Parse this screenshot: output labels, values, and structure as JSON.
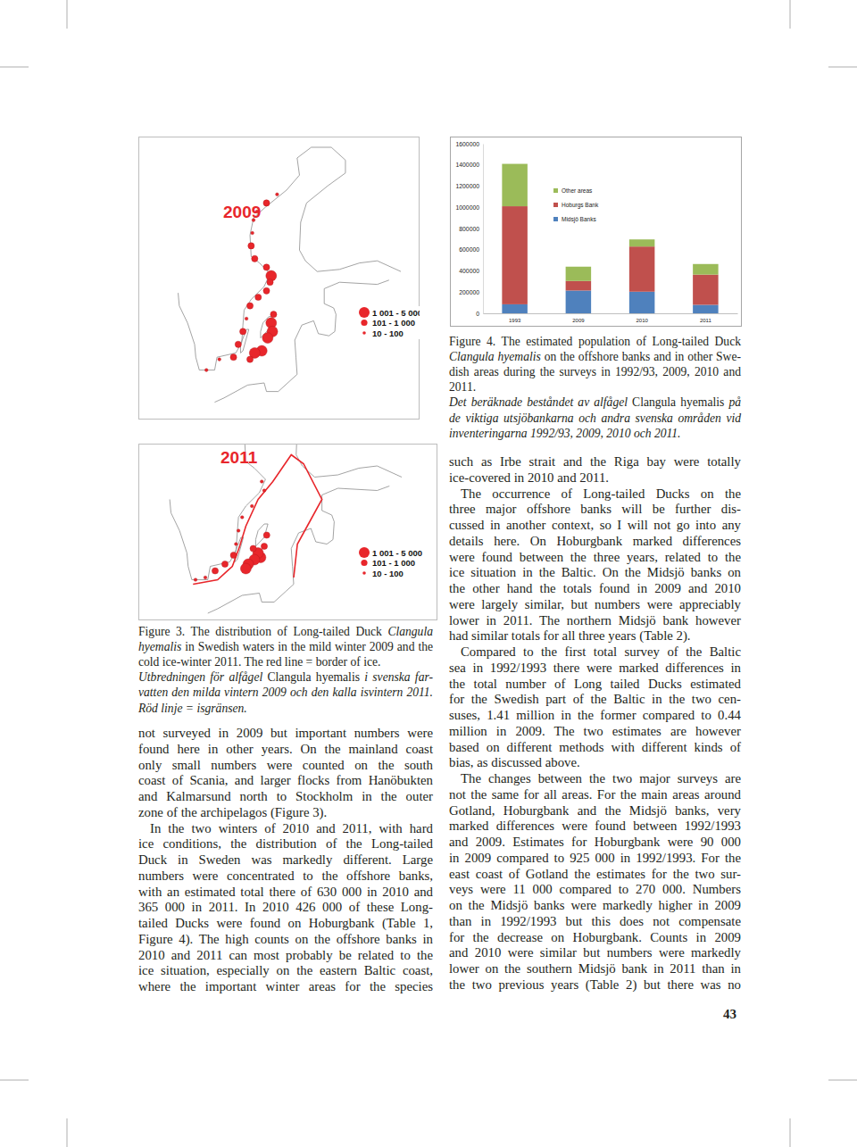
{
  "chart_data": {
    "type": "bar",
    "stacked": true,
    "legend": "top",
    "categories": [
      "1993",
      "2009",
      "2010",
      "2011"
    ],
    "series": [
      {
        "name": "Midsjö Banks",
        "color": "#4f81bd",
        "values": [
          85000,
          215000,
          204000,
          80000
        ]
      },
      {
        "name": "Hoburgs Bank",
        "color": "#c0504d",
        "values": [
          925000,
          90000,
          426000,
          285000
        ]
      },
      {
        "name": "Other areas",
        "color": "#9bbb59",
        "values": [
          400000,
          135000,
          67000,
          100000
        ]
      }
    ],
    "ylim": [
      0,
      1600000
    ],
    "yticks": [
      0,
      200000,
      400000,
      600000,
      800000,
      1000000,
      1200000,
      1400000,
      1600000
    ]
  },
  "maps": [
    {
      "label": "2009",
      "dots": [
        [
          17.5,
          62.4,
          2
        ],
        [
          17.8,
          62.8,
          2
        ],
        [
          18.6,
          63.2,
          1
        ],
        [
          19.5,
          63.6,
          2
        ],
        [
          17.4,
          61.8,
          2
        ],
        [
          17.3,
          61.2,
          1
        ],
        [
          17.6,
          60.6,
          1
        ],
        [
          18.6,
          60.2,
          1
        ],
        [
          19.0,
          59.8,
          0
        ],
        [
          18.9,
          59.5,
          1
        ],
        [
          18.6,
          59.1,
          1
        ],
        [
          17.9,
          58.8,
          1
        ],
        [
          17.2,
          58.4,
          1
        ],
        [
          16.9,
          57.8,
          2
        ],
        [
          16.6,
          57.2,
          1
        ],
        [
          16.2,
          56.6,
          1
        ],
        [
          15.8,
          56.0,
          1
        ],
        [
          14.6,
          55.9,
          2
        ],
        [
          13.5,
          55.4,
          2
        ],
        [
          19.0,
          57.6,
          0
        ],
        [
          19.1,
          57.2,
          0
        ],
        [
          18.7,
          56.9,
          0
        ],
        [
          18.2,
          56.3,
          0
        ],
        [
          17.6,
          56.2,
          0
        ],
        [
          17.2,
          55.9,
          1
        ],
        [
          19.2,
          58.0,
          1
        ]
      ]
    },
    {
      "label": "2011",
      "dots": [
        [
          13.2,
          55.4,
          2
        ],
        [
          14.0,
          55.5,
          2
        ],
        [
          14.8,
          55.8,
          1
        ],
        [
          15.6,
          56.1,
          1
        ],
        [
          16.3,
          56.5,
          1
        ],
        [
          16.5,
          57.0,
          2
        ],
        [
          16.7,
          57.6,
          2
        ],
        [
          17.0,
          58.2,
          2
        ],
        [
          17.8,
          58.7,
          2
        ],
        [
          18.8,
          59.4,
          2
        ],
        [
          18.6,
          59.8,
          2
        ],
        [
          18.5,
          56.4,
          0
        ],
        [
          18.3,
          56.6,
          0
        ],
        [
          18.0,
          56.3,
          0
        ],
        [
          17.5,
          56.1,
          0
        ],
        [
          17.3,
          55.9,
          0
        ],
        [
          18.8,
          56.9,
          1
        ],
        [
          19.0,
          57.4,
          1
        ],
        [
          17.9,
          56.8,
          1
        ]
      ]
    }
  ],
  "map_legend": [
    "1 001 - 5 000",
    "101 - 1 000",
    "10 - 100"
  ],
  "captions": {
    "figure4": {
      "english": [
        "Figure 4. The estimated population of Long-tailed Duck",
        [
          {
            "i": "Clangula hyemalis"
          },
          " on the offshore banks and in other Swe-"
        ],
        "dish areas during the surveys in 1992/93, 2009, 2010 and",
        "2011."
      ],
      "swedish": [
        [
          "Det beräknade beståndet av alfågel ",
          {
            "i": "Clangula hyemalis"
          },
          " på"
        ],
        "de viktiga utsjöbankarna och andra svenska områden vid",
        "inventeringarna 1992/93, 2009, 2010 och 2011."
      ]
    },
    "figure3": {
      "english": [
        [
          "Figure 3. The distribution of Long-tailed Duck ",
          {
            "i": "Clangula"
          }
        ],
        [
          {
            "i": "hyemalis"
          },
          " in Swedish waters in the mild winter 2009 and the"
        ],
        "cold ice-winter 2011. The red line = border of ice."
      ],
      "swedish": [
        [
          "Utbredningen för alfågel ",
          {
            "i": "Clangula hyemalis"
          },
          " i svenska far-"
        ],
        "vatten den milda vintern 2009 och den kalla isvintern 2011.",
        "Röd linje = isgränsen."
      ]
    }
  },
  "columns": [
    [
      [
        "not surveyed in 2009 but important numbers were",
        "found here in other years. On the mainland coast",
        "only small numbers were counted on the south",
        "coast of Scania, and larger flocks from Hanöbukten",
        "and Kalmarsund north to Stockholm in the outer",
        "zone of the archipelagos (Figure 3)."
      ],
      [
        "In the two winters of 2010 and 2011, with hard",
        "ice conditions, the distribution of the Long-tailed",
        "Duck in Sweden was markedly different. Large",
        "numbers were concentrated to the offshore banks,",
        "with an estimated total there of 630 000 in 2010 and",
        "365 000 in 2011. In 2010 426 000 of these Long-",
        "tailed Ducks were found on Hoburgbank (Table 1,",
        "Figure 4). The high counts on the offshore banks in",
        "2010 and 2011 can most probably be related to the",
        "ice situation, especially on the eastern Baltic coast,",
        "where the important winter areas for the species"
      ]
    ],
    [
      [
        "such as Irbe strait and the Riga bay were totally",
        "ice-covered in 2010 and 2011."
      ],
      [
        "The occurrence of Long-tailed Ducks on the",
        "three major offshore banks will be further dis-",
        "cussed in another context, so I will not go into any",
        "details here. On Hoburgbank marked differences",
        "were found between the three years, related to the",
        "ice situation in the Baltic. On the Midsjö banks on",
        "the other hand the totals found in 2009 and 2010",
        "were largely similar, but numbers were appreciably",
        "lower in 2011. The northern Midsjö bank however",
        "had similar totals for all three years (Table 2)."
      ],
      [
        "Compared to the first total survey of the Baltic",
        "sea in 1992/1993 there were marked differences in",
        "the total number of Long tailed Ducks estimated",
        "for the Swedish part of the Baltic in the two cen-",
        "suses, 1.41 million in the former compared to 0.44",
        "million in 2009. The two estimates are however",
        "based on different methods with different kinds of",
        "bias, as discussed above."
      ],
      [
        "The changes between the two major surveys are",
        "not the same for all areas. For the main areas around",
        "Gotland, Hoburgbank and the Midsjö banks, very",
        "marked differences were found between 1992/1993",
        "and 2009. Estimates for Hoburgbank were 90 000",
        "in 2009 compared to 925 000 in 1992/1993. For the",
        "east coast of Gotland the estimates for the two sur-",
        "veys were 11 000 compared to 270 000. Numbers",
        "on the Midsjö banks were markedly higher in 2009",
        "than in 1992/1993 but this does not compensate",
        "for the decrease on Hoburgbank. Counts in 2009",
        "and 2010 were similar but numbers were markedly",
        "lower on the southern Midsjö bank in 2011 than in",
        "the two previous years (Table 2) but there was no"
      ]
    ]
  ],
  "page_number": 43
}
